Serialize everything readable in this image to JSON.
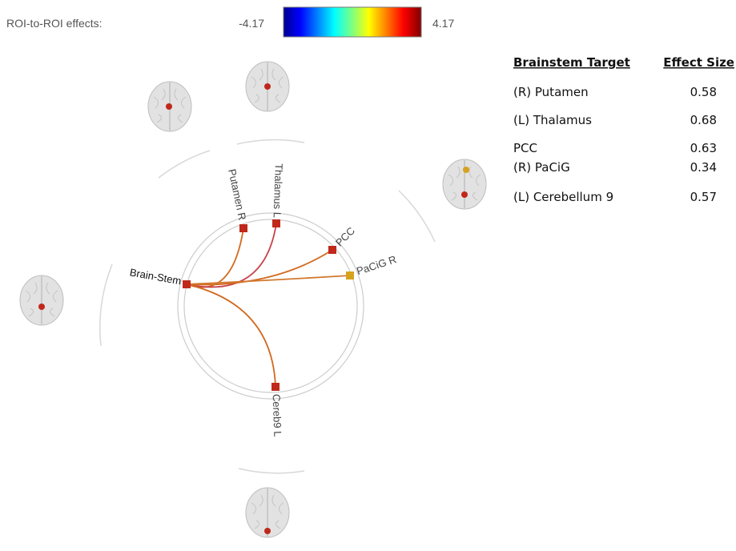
{
  "colorbar": {
    "label": "ROI-to-ROI effects:",
    "min": -4.17,
    "max": 4.17
  },
  "nodes": [
    {
      "label": "Brain-Stem"
    },
    {
      "label": "Putamen R"
    },
    {
      "label": "Thalamus L"
    },
    {
      "label": "PCC"
    },
    {
      "label": "PaCiG R"
    },
    {
      "label": "Cereb9 L"
    }
  ],
  "table": {
    "header": [
      "Brainstem Target",
      "Effect Size"
    ],
    "rows": [
      [
        "(R) Putamen",
        0.58
      ],
      [
        "(L) Thalamus",
        0.68
      ],
      [
        "PCC",
        0.63
      ],
      [
        "(R) PaCiG",
        0.34
      ],
      [
        "(L) Cerebellum 9",
        0.57
      ]
    ]
  }
}
